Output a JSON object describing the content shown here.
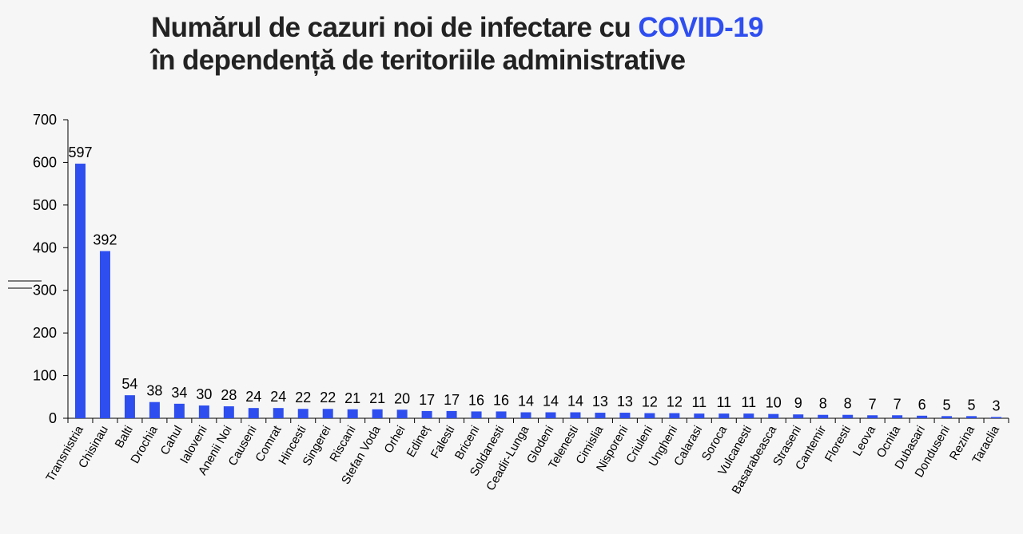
{
  "title": {
    "line1_prefix": "Numărul de cazuri noi de infectare cu ",
    "line1_accent": "COVID-19",
    "line2": "în dependență de teritoriile administrative"
  },
  "colors": {
    "bar": "#2e4ef0",
    "accent": "#2e4ef0",
    "title": "#222222",
    "background": "#f6f6f6"
  },
  "chart_data": {
    "type": "bar",
    "title": "Numărul de cazuri noi de infectare cu COVID-19 în dependență de teritoriile administrative",
    "xlabel": "",
    "ylabel": "",
    "ylim": [
      0,
      700
    ],
    "yticks": [
      0,
      100,
      200,
      300,
      400,
      500,
      600,
      700
    ],
    "grid": false,
    "legend": "none",
    "data_labels": true,
    "categories": [
      "Transnistria",
      "Chisinau",
      "Balti",
      "Drochia",
      "Cahul",
      "Ialoveni",
      "Anenii Noi",
      "Causeni",
      "Comrat",
      "Hincesti",
      "Singerei",
      "Riscani",
      "Stefan Voda",
      "Orhei",
      "Edineț",
      "Falesti",
      "Briceni",
      "Soldanesti",
      "Ceadir-Lunga",
      "Glodeni",
      "Telenesti",
      "Cimislia",
      "Nisporeni",
      "Criuleni",
      "Ungheni",
      "Calarasi",
      "Soroca",
      "Vulcanesti",
      "Basarabeasca",
      "Straseni",
      "Cantemir",
      "Floresti",
      "Leova",
      "Ocnita",
      "Dubasari",
      "Donduseni",
      "Rezina",
      "Taraclia"
    ],
    "values": [
      597,
      392,
      54,
      38,
      34,
      30,
      28,
      24,
      24,
      22,
      22,
      21,
      21,
      20,
      17,
      17,
      16,
      16,
      14,
      14,
      14,
      13,
      13,
      12,
      12,
      11,
      11,
      11,
      10,
      9,
      8,
      8,
      7,
      7,
      6,
      5,
      5,
      3
    ]
  }
}
